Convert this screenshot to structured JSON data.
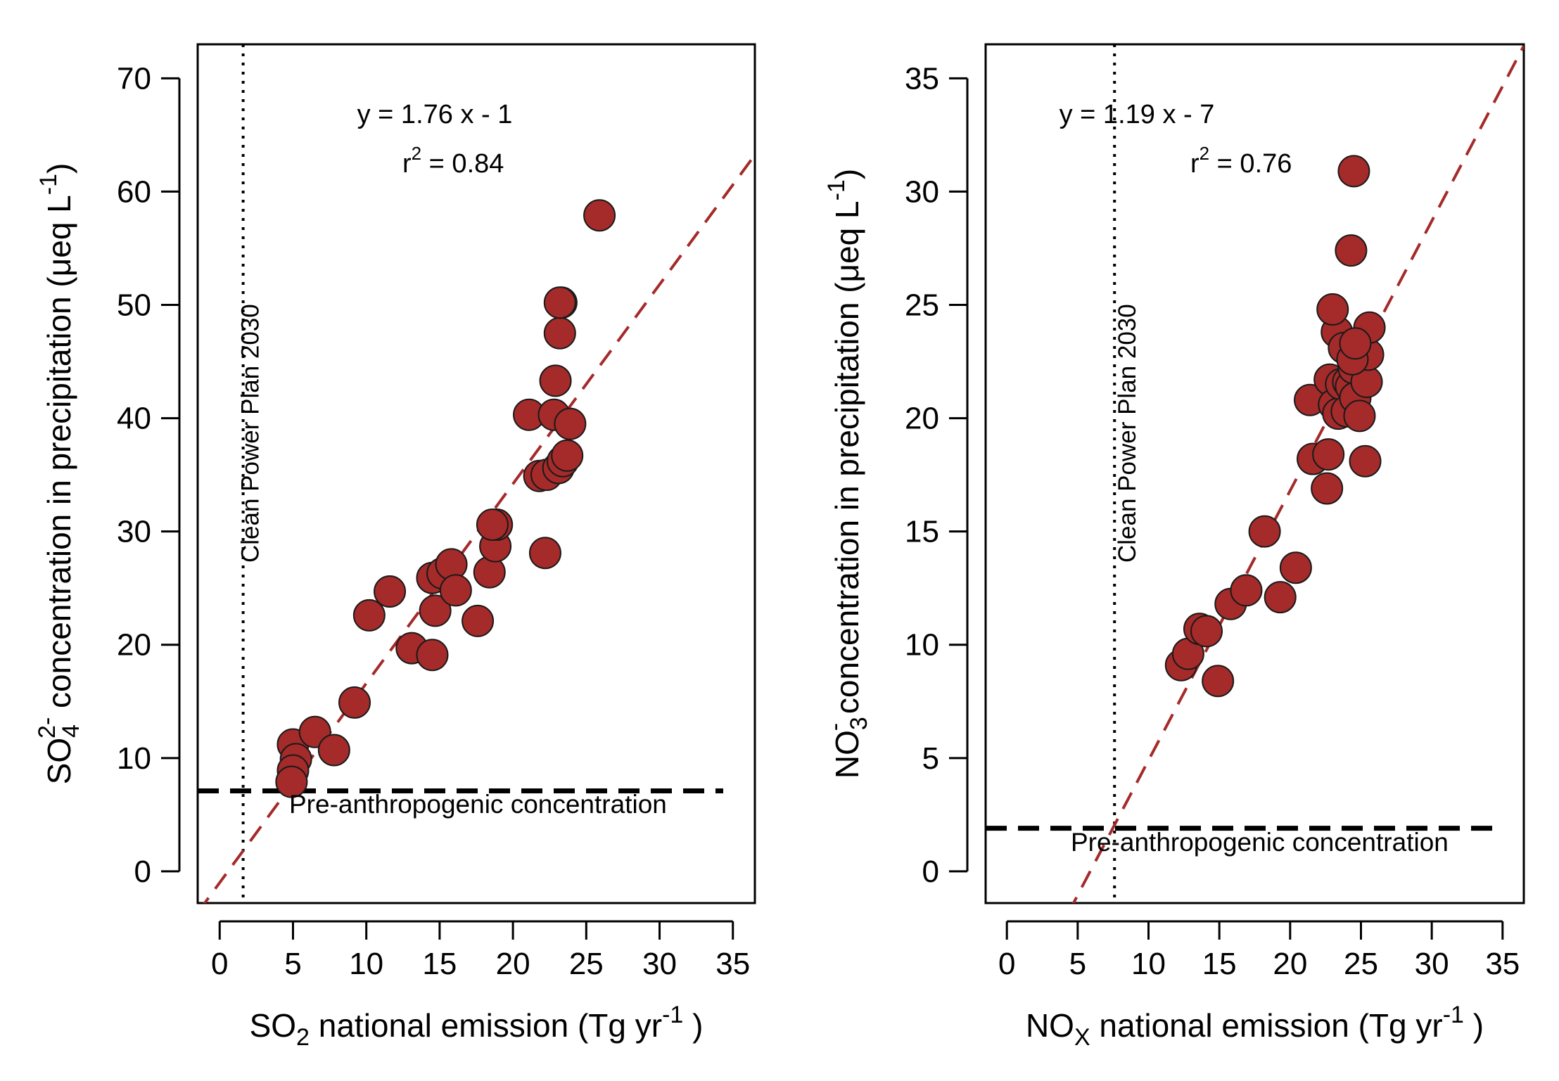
{
  "colors": {
    "point_fill": "#a52a2a",
    "point_stroke": "#1a1a1a",
    "fit_line": "#a52a2a",
    "reference_line": "#000000"
  },
  "chart_data": [
    {
      "type": "scatter",
      "title": "",
      "xlabel": {
        "prefix": "SO",
        "sub": "2",
        "main": "  national emission (Tg yr",
        "sup": "-1",
        "tail": " )"
      },
      "ylabel": {
        "prefix": "SO",
        "sub": "4",
        "sup": "2-",
        "main": " concentration in precipitation  (μeq L",
        "sup2": "-1",
        "tail": ")"
      },
      "xlim": [
        -1.5,
        36.5
      ],
      "ylim": [
        -2.8,
        73
      ],
      "xticks": [
        0,
        5,
        10,
        15,
        20,
        25,
        30,
        35
      ],
      "yticks": [
        0,
        10,
        20,
        30,
        40,
        50,
        60,
        70
      ],
      "grid": false,
      "equation": {
        "lhs": "y = 1.76 x  -  1",
        "r2_label": "r",
        "r2_sup": "2",
        "r2_value": "  =  0.84"
      },
      "fit": {
        "slope": 1.76,
        "intercept": -1
      },
      "vline": {
        "x": 1.6,
        "label": "Clean Power Plan 2030"
      },
      "hline": {
        "y": 7.1,
        "label": "Pre-anthropogenic concentration"
      },
      "x": [
        5.0,
        5.2,
        5.0,
        4.9,
        6.5,
        7.8,
        9.2,
        10.2,
        11.6,
        13.1,
        14.5,
        14.7,
        14.5,
        15.2,
        15.8,
        16.1,
        17.6,
        18.4,
        18.8,
        18.9,
        18.6,
        21.1,
        21.8,
        22.2,
        22.3,
        22.8,
        23.1,
        23.4,
        23.7,
        23.9,
        22.9,
        23.2,
        23.3,
        23.2,
        25.9
      ],
      "y": [
        11.2,
        9.9,
        8.9,
        7.9,
        12.3,
        10.7,
        14.9,
        22.6,
        24.7,
        19.7,
        19.1,
        23.0,
        25.9,
        26.3,
        27.1,
        24.8,
        22.1,
        26.4,
        28.7,
        30.6,
        30.6,
        40.3,
        34.9,
        28.1,
        35.0,
        40.3,
        35.6,
        36.2,
        36.7,
        39.5,
        43.3,
        47.5,
        50.2,
        50.2,
        57.9
      ]
    },
    {
      "type": "scatter",
      "title": "",
      "xlabel": {
        "prefix": "NO",
        "sub": "X",
        "main": "  national emission (Tg yr",
        "sup": "-1",
        "tail": " )"
      },
      "ylabel": {
        "prefix": "NO",
        "sub": "3",
        "sup": "-",
        "main": " concentration in precipitation  (μeq L",
        "sup2": "-1",
        "tail": ")"
      },
      "xlim": [
        -1.5,
        36.5
      ],
      "ylim": [
        -1.4,
        36.5
      ],
      "xticks": [
        0,
        5,
        10,
        15,
        20,
        25,
        30,
        35
      ],
      "yticks": [
        0,
        5,
        10,
        15,
        20,
        25,
        30,
        35
      ],
      "grid": false,
      "equation": {
        "lhs": "y = 1.19 x  -  7",
        "r2_label": "r",
        "r2_sup": "2",
        "r2_value": "  =  0.76"
      },
      "fit": {
        "slope": 1.19,
        "intercept": -7
      },
      "vline": {
        "x": 7.6,
        "label": "Clean Power Plan 2030"
      },
      "hline": {
        "y": 1.9,
        "label": "Pre-anthropogenic concentration"
      },
      "x": [
        12.3,
        12.8,
        13.6,
        14.1,
        14.9,
        15.8,
        16.9,
        18.2,
        19.3,
        20.4,
        21.4,
        21.6,
        22.6,
        22.7,
        22.8,
        23.1,
        23.3,
        23.4,
        23.6,
        23.8,
        24.0,
        24.1,
        24.3,
        24.5,
        24.6,
        24.9,
        25.3,
        25.4,
        25.5,
        25.6,
        24.4,
        24.6,
        23.0,
        24.3,
        24.5
      ],
      "y": [
        9.1,
        9.6,
        10.7,
        10.6,
        8.4,
        11.8,
        12.4,
        15.0,
        12.1,
        13.4,
        20.8,
        18.2,
        16.9,
        18.4,
        21.7,
        20.6,
        23.8,
        20.2,
        21.5,
        23.1,
        20.3,
        21.6,
        21.4,
        22.2,
        20.9,
        20.1,
        18.1,
        21.6,
        22.8,
        24.0,
        22.6,
        23.3,
        24.8,
        27.4,
        30.9
      ]
    }
  ]
}
